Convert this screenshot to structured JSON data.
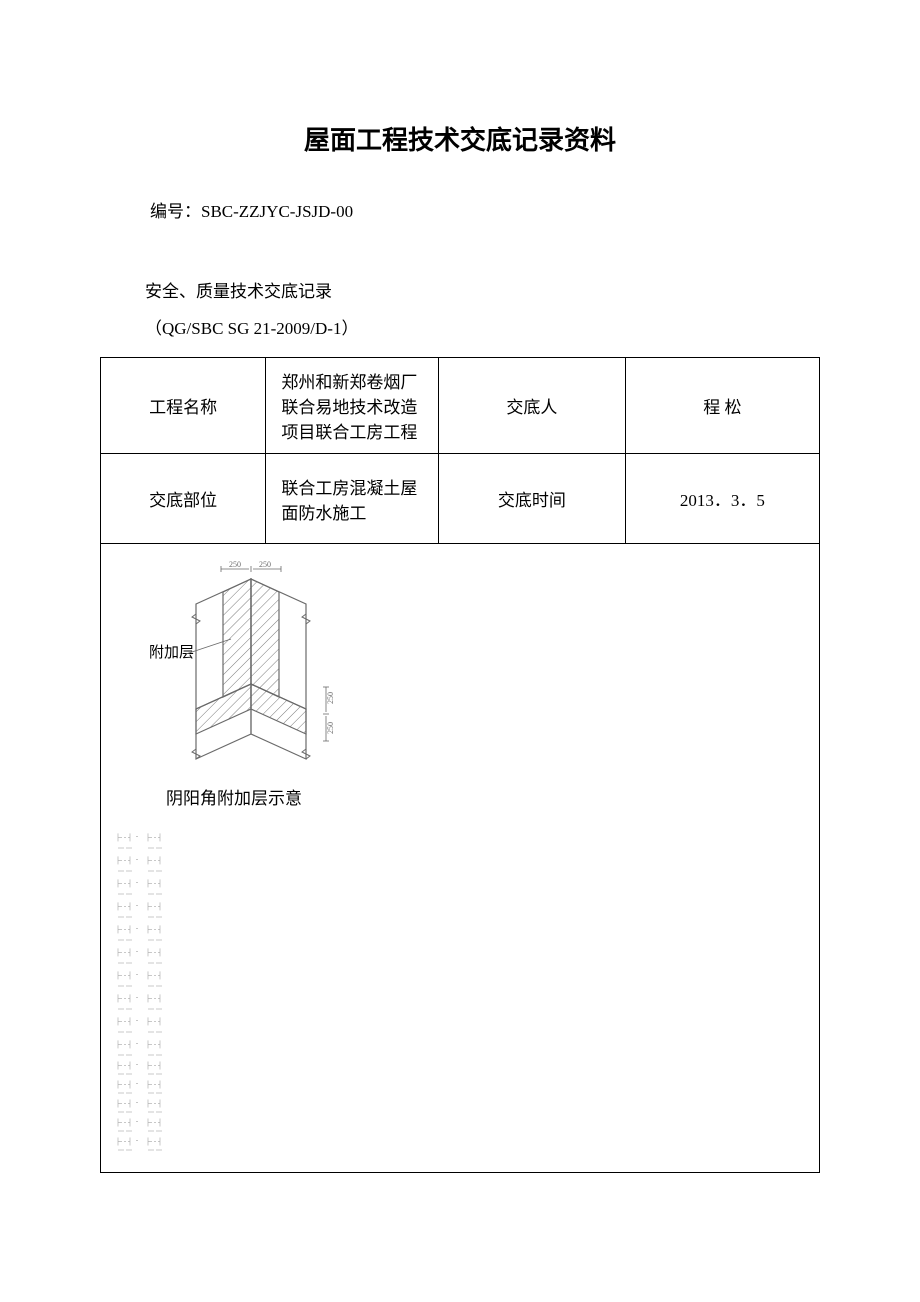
{
  "title": "屋面工程技术交底记录资料",
  "docNumber": "编号：SBC-ZZJYC-JSJD-00",
  "subTitle": "安全、质量技术交底记录",
  "standard": "（QG/SBC SG 21-2009/D-1）",
  "table": {
    "row1": {
      "label1": "工程名称",
      "value1": "郑州和新郑卷烟厂联合易地技术改造项目联合工房工程",
      "label2": "交底人",
      "value2": "程 松"
    },
    "row2": {
      "label1": "交底部位",
      "value1": "联合工房混凝土屋面防水施工",
      "label2": "交底时间",
      "value2": "2013．3．5"
    }
  },
  "diagram": {
    "layerLabel": "附加层",
    "dim250_top_left": "250",
    "dim250_top_right": "250",
    "dim250_mid": "250",
    "dim250_bot": "250",
    "caption": "阴阳角附加层示意",
    "hatch_color": "#6a6a6a",
    "line_color": "#6a6a6a",
    "text_color": "#000000",
    "dim_fontsize": 8,
    "label_fontsize": 15
  },
  "dashes": {
    "rows_large": 10,
    "rows_small": 5,
    "stroke": "#b0b0b0",
    "stroke_width": 0.7
  }
}
